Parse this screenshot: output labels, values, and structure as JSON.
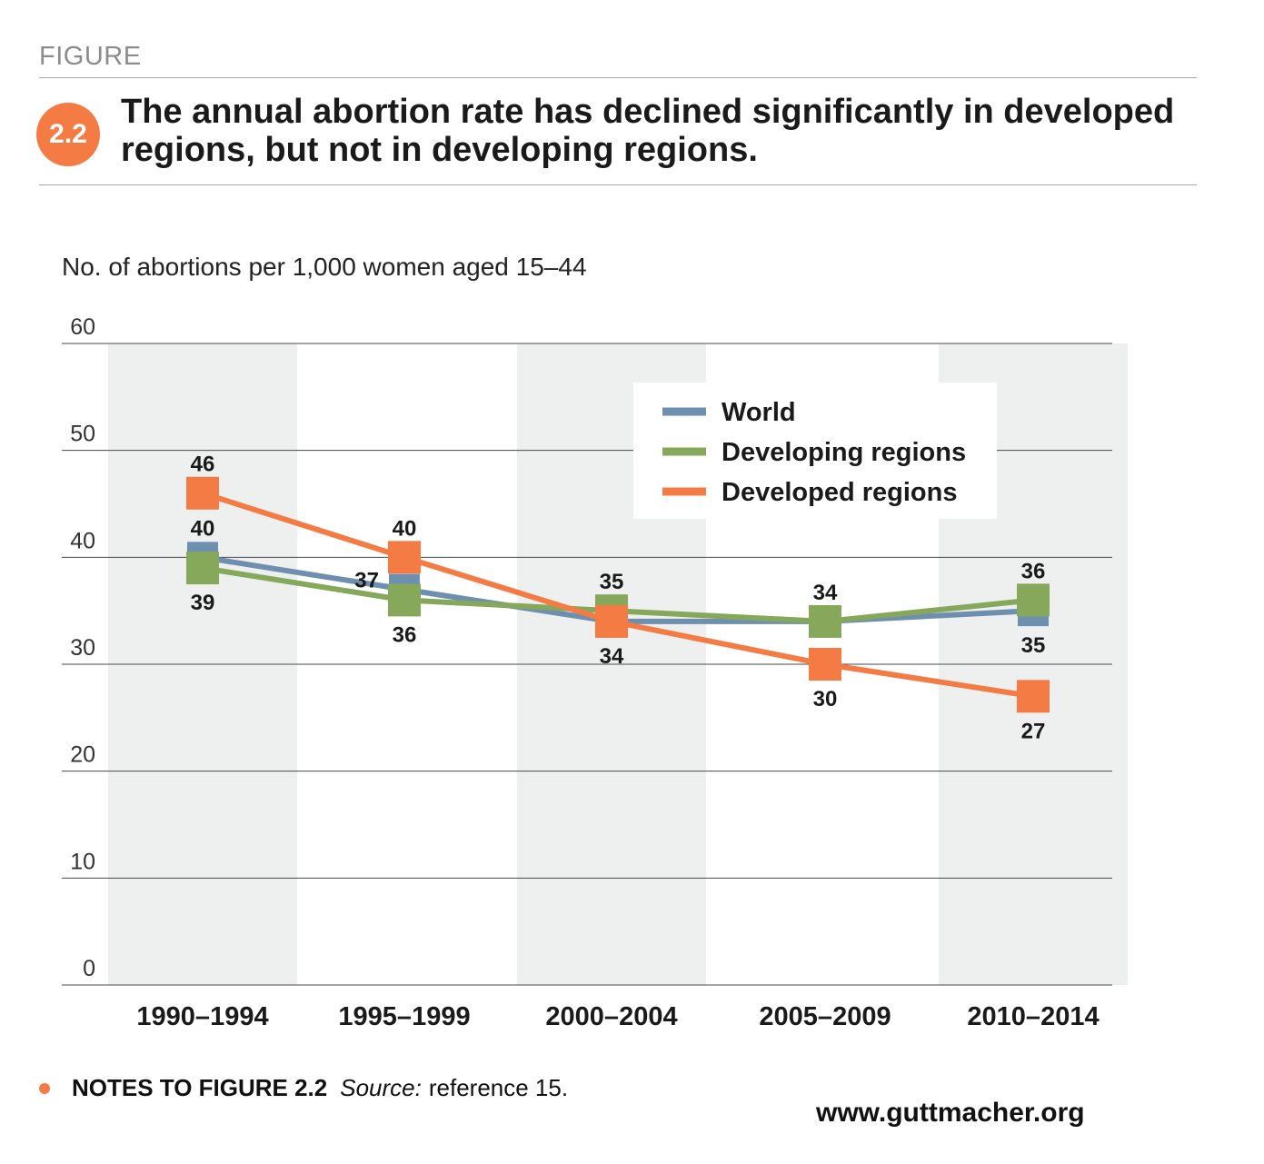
{
  "header": {
    "kicker": "FIGURE",
    "badge": "2.2",
    "title": "The annual abortion rate has declined significantly in developed regions, but not in developing regions."
  },
  "notes": {
    "heading": "NOTES TO FIGURE 2.2",
    "source_label": "Source:",
    "source_text": "reference 15."
  },
  "footer": {
    "url": "www.guttmacher.org"
  },
  "chart_data": {
    "type": "line",
    "title": "",
    "ylabel": "No. of abortions per 1,000 women aged 15–44",
    "xlabel": "",
    "categories": [
      "1990–1994",
      "1995–1999",
      "2000–2004",
      "2005–2009",
      "2010–2014"
    ],
    "ylim": [
      0,
      60
    ],
    "yticks": [
      0,
      10,
      20,
      30,
      40,
      50,
      60
    ],
    "grid": true,
    "legend_position": "top-right",
    "series": [
      {
        "name": "World",
        "color": "#6f8fb0",
        "values": [
          40,
          37,
          34,
          34,
          35
        ]
      },
      {
        "name": "Developing regions",
        "color": "#86a85a",
        "values": [
          39,
          36,
          35,
          34,
          36
        ]
      },
      {
        "name": "Developed regions",
        "color": "#f47c44",
        "values": [
          46,
          40,
          34,
          30,
          27
        ]
      }
    ],
    "value_labels": [
      {
        "series": 0,
        "index": 0,
        "text": "40",
        "pos": "above"
      },
      {
        "series": 0,
        "index": 1,
        "text": "37",
        "pos": "left"
      },
      {
        "series": 0,
        "index": 4,
        "text": "35",
        "pos": "below"
      },
      {
        "series": 1,
        "index": 0,
        "text": "39",
        "pos": "below"
      },
      {
        "series": 1,
        "index": 1,
        "text": "36",
        "pos": "below"
      },
      {
        "series": 1,
        "index": 2,
        "text": "35",
        "pos": "above"
      },
      {
        "series": 1,
        "index": 3,
        "text": "34",
        "pos": "above"
      },
      {
        "series": 1,
        "index": 4,
        "text": "36",
        "pos": "above"
      },
      {
        "series": 2,
        "index": 0,
        "text": "46",
        "pos": "above"
      },
      {
        "series": 2,
        "index": 1,
        "text": "40",
        "pos": "above"
      },
      {
        "series": 2,
        "index": 2,
        "text": "34",
        "pos": "below"
      },
      {
        "series": 2,
        "index": 3,
        "text": "30",
        "pos": "below"
      },
      {
        "series": 2,
        "index": 4,
        "text": "27",
        "pos": "below"
      }
    ]
  }
}
